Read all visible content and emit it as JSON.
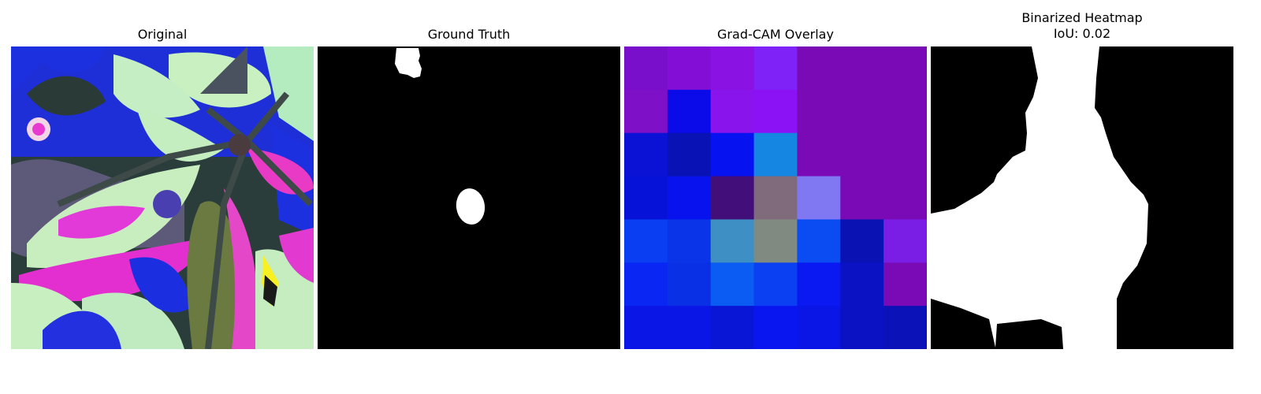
{
  "figure": {
    "panels": [
      {
        "id": "original",
        "title": "Original",
        "subtitle": ""
      },
      {
        "id": "ground-truth",
        "title": "Ground Truth",
        "subtitle": ""
      },
      {
        "id": "gradcam",
        "title": "Grad-CAM Overlay",
        "subtitle": ""
      },
      {
        "id": "binarized",
        "title": "Binarized Heatmap",
        "subtitle": "IoU: 0.02"
      }
    ],
    "gradcam_grid": {
      "rows": 7,
      "cols": 7,
      "colors": [
        [
          "#7a0fcb",
          "#830fd6",
          "#8a12e2",
          "#7e22f8",
          "#7a0ab6",
          "#7a0ab6",
          "#7a0ab6"
        ],
        [
          "#7e10c7",
          "#0b0ae8",
          "#8a14ec",
          "#8a12f4",
          "#7a0ab6",
          "#7a0ab6",
          "#7a0ab6"
        ],
        [
          "#0b12d6",
          "#0912b4",
          "#0712f1",
          "#1587e3",
          "#7a0ab6",
          "#7a0ab6",
          "#7a0ab6"
        ],
        [
          "#0712d8",
          "#0812ee",
          "#420f7a",
          "#7f6b7c",
          "#8077f2",
          "#7a0ab6",
          "#7a0ab6"
        ],
        [
          "#0a3ef2",
          "#0a34e8",
          "#3e8fc3",
          "#808a80",
          "#0a4cf2",
          "#0a12b4",
          "#7a1ee6"
        ],
        [
          "#0a26f2",
          "#0a30e6",
          "#0a5cf2",
          "#0a40f2",
          "#0a18f2",
          "#0a12c4",
          "#7a0ab6"
        ],
        [
          "#0a16e6",
          "#0a16e6",
          "#0a16d6",
          "#0a16f0",
          "#0a16e6",
          "#0a12c4",
          "#0a12b8"
        ]
      ]
    }
  }
}
